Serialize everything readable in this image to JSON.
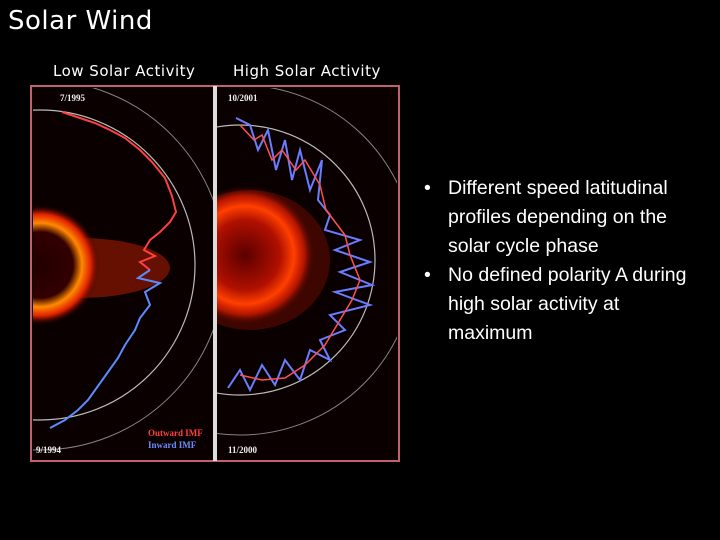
{
  "header": {
    "title": "Solar Wind"
  },
  "panels": [
    {
      "label": "Low Solar Activity",
      "date_top": "7/1995",
      "date_bottom": "9/1994"
    },
    {
      "label": "High Solar Activity",
      "date_top": "10/2001",
      "date_bottom": "11/2000"
    }
  ],
  "legend": [
    "Outward IMF",
    "Inward IMF"
  ],
  "bullets": [
    "Different speed latitudinal profiles depending on the solar cycle phase",
    "No defined polarity A during high solar activity at maximum"
  ]
}
